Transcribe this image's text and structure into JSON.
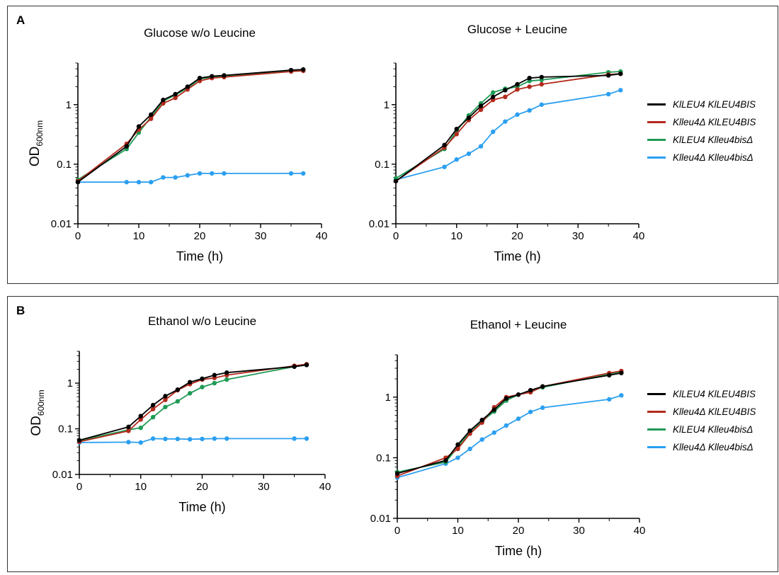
{
  "panels": [
    {
      "letter": "A"
    },
    {
      "letter": "B"
    }
  ],
  "legend": [
    {
      "name": "KlLEU4 KlLEU4BIS",
      "color": "#000000"
    },
    {
      "name": "Klleu4Δ KlLEU4BIS",
      "color": "#b22a1c"
    },
    {
      "name": "KlLEU4 Klleu4bisΔ",
      "color": "#1f9a55"
    },
    {
      "name": "Klleu4Δ Klleu4bisΔ",
      "color": "#2b9ff0"
    }
  ],
  "chart_data": [
    {
      "type": "line",
      "title": "Glucose w/o Leucine",
      "xlabel": "Time (h)",
      "ylabel": "OD",
      "ylabel_sub": "600nm",
      "yscale": "log",
      "xlim": [
        0,
        40
      ],
      "ylim": [
        0.01,
        5
      ],
      "xticks": [
        "0",
        "10",
        "20",
        "30",
        "40"
      ],
      "yticks": [
        "0.01",
        "0.1",
        "1"
      ],
      "series": [
        {
          "name": "KlLEU4 KlLEU4BIS",
          "color": "#000000",
          "x": [
            0,
            8,
            10,
            12,
            14,
            16,
            18,
            20,
            22,
            24,
            35,
            37
          ],
          "y": [
            0.05,
            0.2,
            0.43,
            0.68,
            1.2,
            1.5,
            2.0,
            2.8,
            3.0,
            3.1,
            3.8,
            3.9
          ]
        },
        {
          "name": "Klleu4Δ KlLEU4BIS",
          "color": "#b22a1c",
          "x": [
            0,
            8,
            10,
            12,
            14,
            16,
            18,
            20,
            22,
            24,
            35,
            37
          ],
          "y": [
            0.052,
            0.22,
            0.38,
            0.58,
            1.05,
            1.3,
            1.8,
            2.5,
            2.8,
            2.9,
            3.6,
            3.7
          ]
        },
        {
          "name": "KlLEU4 Klleu4bisΔ",
          "color": "#1f9a55",
          "x": [
            0,
            8,
            10,
            12,
            14,
            16,
            18,
            20,
            22,
            24,
            35,
            37
          ],
          "y": [
            0.055,
            0.18,
            0.34,
            0.62,
            1.15,
            1.45,
            1.9,
            2.7,
            2.9,
            3.0,
            3.7,
            3.8
          ]
        },
        {
          "name": "Klleu4Δ Klleu4bisΔ",
          "color": "#2b9ff0",
          "x": [
            0,
            8,
            10,
            12,
            14,
            16,
            18,
            20,
            22,
            24,
            35,
            37
          ],
          "y": [
            0.05,
            0.05,
            0.05,
            0.05,
            0.06,
            0.06,
            0.065,
            0.07,
            0.07,
            0.07,
            0.07,
            0.07
          ]
        }
      ]
    },
    {
      "type": "line",
      "title": "Glucose + Leucine",
      "xlabel": "Time (h)",
      "ylabel": "",
      "ylabel_sub": "",
      "yscale": "log",
      "xlim": [
        0,
        40
      ],
      "ylim": [
        0.01,
        5
      ],
      "xticks": [
        "0",
        "10",
        "20",
        "30",
        "40"
      ],
      "yticks": [
        "0.01",
        "0.1",
        "1"
      ],
      "series": [
        {
          "name": "KlLEU4 KlLEU4BIS",
          "color": "#000000",
          "x": [
            0,
            8,
            10,
            12,
            14,
            16,
            18,
            20,
            22,
            24,
            35,
            37
          ],
          "y": [
            0.052,
            0.21,
            0.39,
            0.6,
            0.95,
            1.35,
            1.75,
            2.2,
            2.8,
            2.9,
            3.1,
            3.3
          ]
        },
        {
          "name": "Klleu4Δ KlLEU4BIS",
          "color": "#b22a1c",
          "x": [
            0,
            8,
            10,
            12,
            14,
            16,
            18,
            20,
            22,
            24,
            35,
            37
          ],
          "y": [
            0.052,
            0.19,
            0.32,
            0.55,
            0.82,
            1.2,
            1.35,
            1.8,
            2.0,
            2.2,
            3.2,
            3.3
          ]
        },
        {
          "name": "KlLEU4 Klleu4bisΔ",
          "color": "#1f9a55",
          "x": [
            0,
            8,
            10,
            12,
            14,
            16,
            18,
            20,
            22,
            24,
            35,
            37
          ],
          "y": [
            0.058,
            0.18,
            0.36,
            0.66,
            1.05,
            1.6,
            1.85,
            2.0,
            2.5,
            2.6,
            3.5,
            3.6
          ]
        },
        {
          "name": "Klleu4Δ Klleu4bisΔ",
          "color": "#2b9ff0",
          "x": [
            0,
            8,
            10,
            12,
            14,
            16,
            18,
            20,
            22,
            24,
            35,
            37
          ],
          "y": [
            0.055,
            0.09,
            0.12,
            0.15,
            0.2,
            0.35,
            0.52,
            0.68,
            0.8,
            1.0,
            1.5,
            1.75
          ]
        }
      ]
    },
    {
      "type": "line",
      "title": "Ethanol w/o Leucine",
      "xlabel": "Time (h)",
      "ylabel": "OD",
      "ylabel_sub": "600nm",
      "yscale": "log",
      "xlim": [
        0,
        40
      ],
      "ylim": [
        0.01,
        5
      ],
      "xticks": [
        "0",
        "10",
        "20",
        "30",
        "40"
      ],
      "yticks": [
        "0.01",
        "0.1",
        "1"
      ],
      "series": [
        {
          "name": "KlLEU4 KlLEU4BIS",
          "color": "#000000",
          "x": [
            0,
            8,
            10,
            12,
            14,
            16,
            18,
            20,
            22,
            24,
            35,
            37
          ],
          "y": [
            0.056,
            0.11,
            0.19,
            0.33,
            0.52,
            0.72,
            1.05,
            1.25,
            1.5,
            1.7,
            2.3,
            2.5
          ]
        },
        {
          "name": "Klleu4Δ KlLEU4BIS",
          "color": "#b22a1c",
          "x": [
            0,
            8,
            10,
            12,
            14,
            16,
            18,
            20,
            22,
            24,
            35,
            37
          ],
          "y": [
            0.052,
            0.09,
            0.16,
            0.27,
            0.43,
            0.7,
            0.95,
            1.2,
            1.3,
            1.5,
            2.4,
            2.6
          ]
        },
        {
          "name": "KlLEU4 Klleu4bisΔ",
          "color": "#1f9a55",
          "x": [
            0,
            8,
            10,
            12,
            14,
            16,
            18,
            20,
            22,
            24,
            35,
            37
          ],
          "y": [
            0.055,
            0.095,
            0.105,
            0.18,
            0.3,
            0.4,
            0.6,
            0.82,
            1.0,
            1.2,
            2.3,
            2.5
          ]
        },
        {
          "name": "Klleu4Δ Klleu4bisΔ",
          "color": "#2b9ff0",
          "x": [
            0,
            8,
            10,
            12,
            14,
            16,
            18,
            20,
            22,
            24,
            35,
            37
          ],
          "y": [
            0.05,
            0.051,
            0.05,
            0.061,
            0.06,
            0.06,
            0.059,
            0.06,
            0.061,
            0.061,
            0.061,
            0.061
          ]
        }
      ]
    },
    {
      "type": "line",
      "title": "Ethanol + Leucine",
      "xlabel": "Time (h)",
      "ylabel": "",
      "ylabel_sub": "",
      "yscale": "log",
      "xlim": [
        0,
        40
      ],
      "ylim": [
        0.01,
        5
      ],
      "xticks": [
        "0",
        "10",
        "20",
        "30",
        "40"
      ],
      "yticks": [
        "0.01",
        "0.1",
        "1"
      ],
      "series": [
        {
          "name": "KlLEU4 KlLEU4BIS",
          "color": "#000000",
          "x": [
            0,
            8,
            10,
            12,
            14,
            16,
            18,
            20,
            22,
            24,
            35,
            37
          ],
          "y": [
            0.055,
            0.09,
            0.165,
            0.28,
            0.42,
            0.62,
            0.95,
            1.1,
            1.3,
            1.5,
            2.3,
            2.5
          ]
        },
        {
          "name": "Klleu4Δ KlLEU4BIS",
          "color": "#b22a1c",
          "x": [
            0,
            8,
            10,
            12,
            14,
            16,
            18,
            20,
            22,
            24,
            35,
            37
          ],
          "y": [
            0.05,
            0.1,
            0.14,
            0.25,
            0.38,
            0.68,
            1.0,
            1.1,
            1.2,
            1.5,
            2.5,
            2.7
          ]
        },
        {
          "name": "KlLEU4 Klleu4bisΔ",
          "color": "#1f9a55",
          "x": [
            0,
            8,
            10,
            12,
            14,
            16,
            18,
            20,
            22,
            24,
            35,
            37
          ],
          "y": [
            0.058,
            0.085,
            0.15,
            0.27,
            0.4,
            0.58,
            0.88,
            1.1,
            1.25,
            1.45,
            2.4,
            2.6
          ]
        },
        {
          "name": "Klleu4Δ Klleu4bisΔ",
          "color": "#2b9ff0",
          "x": [
            0,
            8,
            10,
            12,
            14,
            16,
            18,
            20,
            22,
            24,
            35,
            37
          ],
          "y": [
            0.047,
            0.08,
            0.1,
            0.14,
            0.2,
            0.26,
            0.34,
            0.44,
            0.57,
            0.67,
            0.92,
            1.07
          ]
        }
      ]
    }
  ]
}
